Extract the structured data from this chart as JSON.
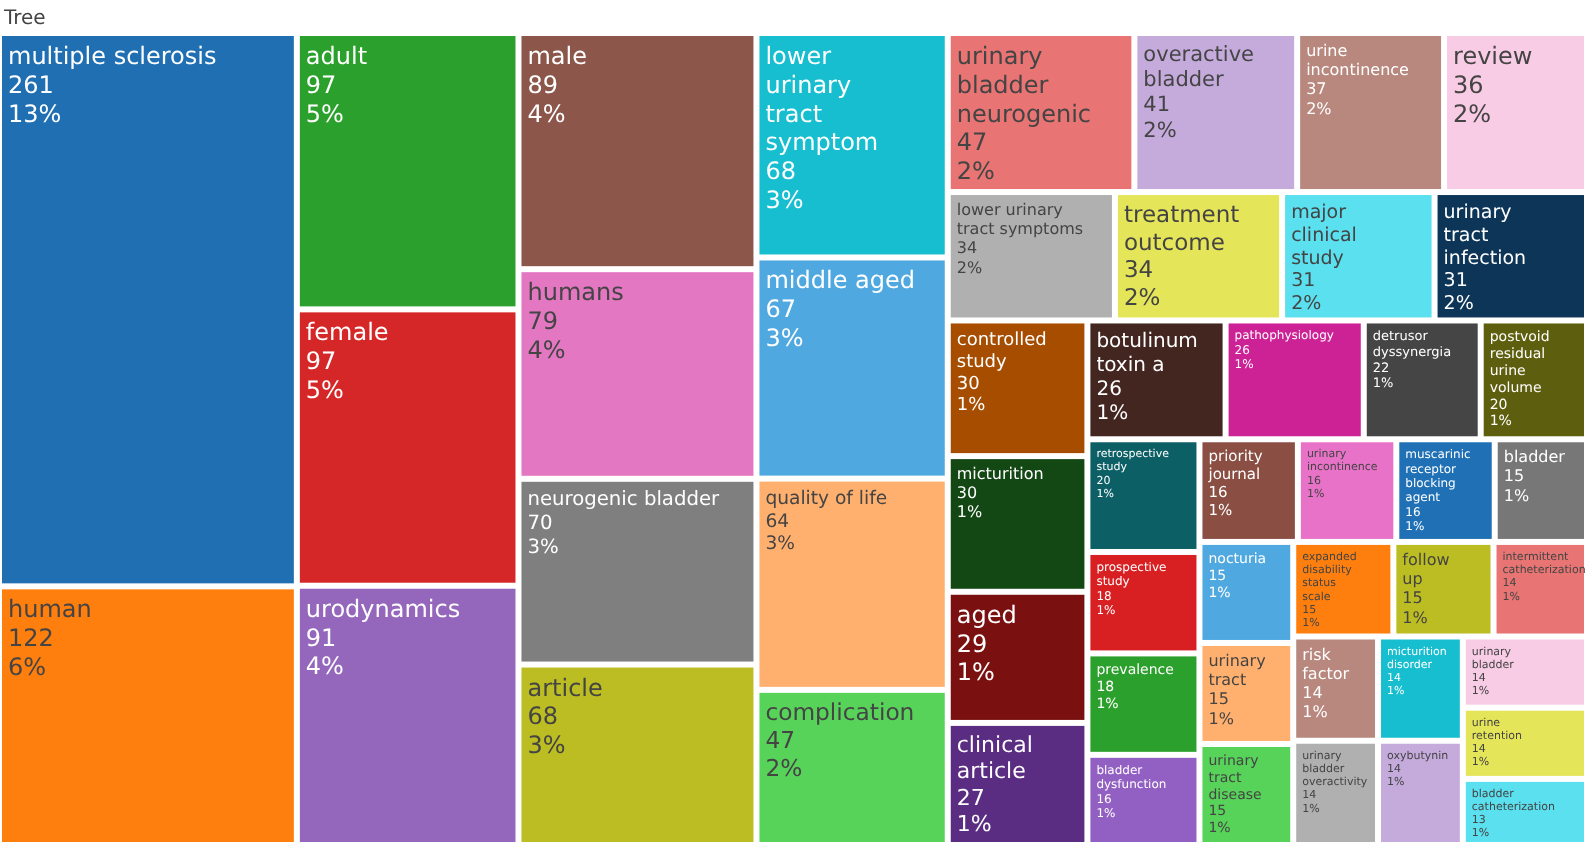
{
  "chart_data": {
    "type": "other",
    "title": "Tree",
    "categories": [
      "multiple sclerosis",
      "human",
      "adult",
      "female",
      "urodynamics",
      "male",
      "humans",
      "neurogenic bladder",
      "article",
      "lower urinary tract symptom",
      "middle aged",
      "quality of life",
      "complication",
      "urinary bladder neurogenic",
      "overactive bladder",
      "urine incontinence",
      "review",
      "lower urinary tract symptoms",
      "treatment outcome",
      "major clinical study",
      "urinary tract infection",
      "controlled study",
      "micturition",
      "aged",
      "clinical article",
      "botulinum toxin a",
      "pathophysiology",
      "detrusor dyssynergia",
      "postvoid residual urine volume",
      "retrospective study",
      "prospective study",
      "prevalence",
      "bladder dysfunction",
      "priority journal",
      "urinary incontinence",
      "muscarinic receptor blocking agent",
      "bladder",
      "nocturia",
      "urinary tract",
      "urinary tract disease",
      "expanded disability status scale",
      "follow up",
      "intermittent catheterization",
      "risk factor",
      "urinary bladder overactivity",
      "micturition disorder",
      "oxybutynin",
      "urinary bladder",
      "urine retention",
      "bladder catheterization"
    ],
    "values": [
      261,
      122,
      97,
      97,
      91,
      89,
      79,
      70,
      68,
      68,
      67,
      64,
      47,
      47,
      41,
      37,
      36,
      34,
      34,
      31,
      31,
      30,
      30,
      29,
      27,
      26,
      26,
      22,
      20,
      20,
      18,
      18,
      16,
      16,
      16,
      16,
      15,
      15,
      15,
      15,
      15,
      15,
      14,
      14,
      14,
      14,
      14,
      14,
      14,
      13
    ],
    "data_labels": true,
    "annotations": [
      {
        "text": "13%",
        "x": "multiple sclerosis"
      },
      {
        "text": "6%",
        "x": "human"
      },
      {
        "text": "5%",
        "x": "adult"
      },
      {
        "text": "5%",
        "x": "female"
      },
      {
        "text": "4%",
        "x": "urodynamics"
      },
      {
        "text": "4%",
        "x": "male"
      },
      {
        "text": "4%",
        "x": "humans"
      },
      {
        "text": "3%",
        "x": "neurogenic bladder"
      },
      {
        "text": "3%",
        "x": "article"
      },
      {
        "text": "3%",
        "x": "lower urinary tract symptom"
      },
      {
        "text": "3%",
        "x": "middle aged"
      },
      {
        "text": "3%",
        "x": "quality of life"
      },
      {
        "text": "2%",
        "x": "complication"
      },
      {
        "text": "2%",
        "x": "urinary bladder neurogenic"
      },
      {
        "text": "2%",
        "x": "overactive bladder"
      },
      {
        "text": "2%",
        "x": "urine incontinence"
      },
      {
        "text": "2%",
        "x": "review"
      },
      {
        "text": "2%",
        "x": "lower urinary tract symptoms"
      },
      {
        "text": "2%",
        "x": "treatment outcome"
      },
      {
        "text": "2%",
        "x": "major clinical study"
      },
      {
        "text": "2%",
        "x": "urinary tract infection"
      },
      {
        "text": "1%",
        "x": "controlled study"
      },
      {
        "text": "1%",
        "x": "micturition"
      },
      {
        "text": "1%",
        "x": "aged"
      },
      {
        "text": "1%",
        "x": "clinical article"
      },
      {
        "text": "1%",
        "x": "botulinum toxin a"
      },
      {
        "text": "1%",
        "x": "pathophysiology"
      },
      {
        "text": "1%",
        "x": "detrusor dyssynergia"
      },
      {
        "text": "1%",
        "x": "postvoid residual urine volume"
      },
      {
        "text": "1%",
        "x": "retrospective study"
      },
      {
        "text": "1%",
        "x": "prospective study"
      },
      {
        "text": "1%",
        "x": "prevalence"
      },
      {
        "text": "1%",
        "x": "bladder dysfunction"
      },
      {
        "text": "1%",
        "x": "priority journal"
      },
      {
        "text": "1%",
        "x": "urinary incontinence"
      },
      {
        "text": "1%",
        "x": "muscarinic receptor blocking agent"
      },
      {
        "text": "1%",
        "x": "bladder"
      },
      {
        "text": "1%",
        "x": "nocturia"
      },
      {
        "text": "1%",
        "x": "urinary tract"
      },
      {
        "text": "1%",
        "x": "urinary tract disease"
      },
      {
        "text": "1%",
        "x": "expanded disability status scale"
      },
      {
        "text": "1%",
        "x": "follow up"
      },
      {
        "text": "1%",
        "x": "intermittent catheterization"
      },
      {
        "text": "1%",
        "x": "risk factor"
      },
      {
        "text": "1%",
        "x": "urinary bladder overactivity"
      },
      {
        "text": "1%",
        "x": "micturition disorder"
      },
      {
        "text": "1%",
        "x": "oxybutynin"
      },
      {
        "text": "1%",
        "x": "urinary bladder"
      },
      {
        "text": "1%",
        "x": "urine retention"
      },
      {
        "text": "1%",
        "x": "bladder catheterization"
      }
    ],
    "colors": [
      "#1f6fb2",
      "#ff7f0e",
      "#2ca02c",
      "#d62728",
      "#9467bd",
      "#8c564b",
      "#e377c2",
      "#7f7f7f",
      "#bcbd22",
      "#17becf",
      "#4fa8e0",
      "#ffb06e",
      "#58d35a",
      "#e87474",
      "#c5aadc",
      "#b8877d",
      "#f9cce6",
      "#b0b0b0",
      "#e5e55a",
      "#5ae0ee",
      "#0d3557",
      "#a64d00",
      "#134713",
      "#7a1010",
      "#5a2d82",
      "#442620",
      "#cc2296",
      "#454545",
      "#5e5e0f",
      "#0d5f66",
      "#d81f22",
      "#2ca02c",
      "#9260c2",
      "#8a4e43",
      "#e872c8",
      "#1f70b4",
      "#777777",
      "#4fa8e0",
      "#ffb06e",
      "#58d35a",
      "#ff7f0e",
      "#bcbd22",
      "#e87474",
      "#b8877d",
      "#b0b0b0",
      "#17becf",
      "#c5aadc",
      "#f9cce6",
      "#e5e55a",
      "#5ae0ee"
    ]
  }
}
